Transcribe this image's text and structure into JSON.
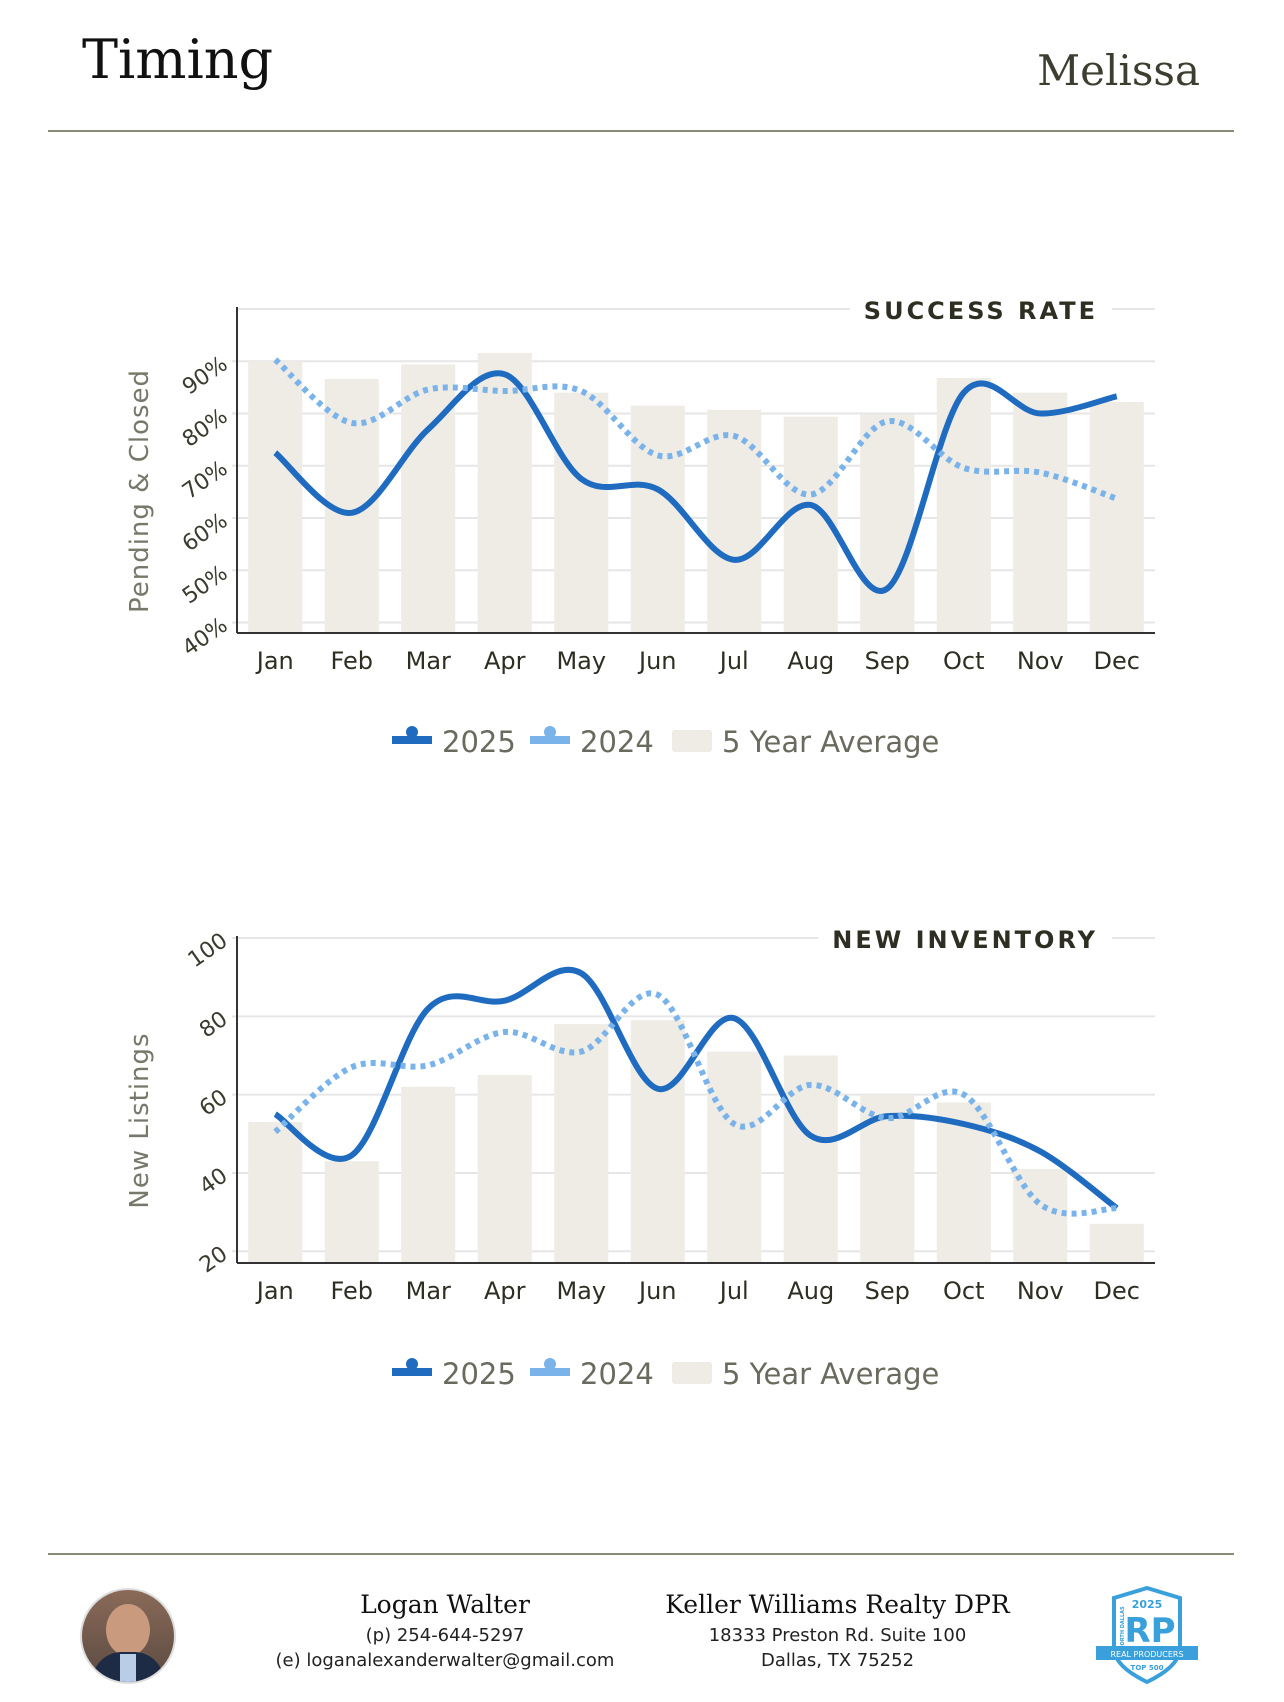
{
  "header": {
    "title": "Timing",
    "city": "Melissa"
  },
  "colors": {
    "series_2025": "#1f6bbf",
    "series_2024": "#7ab3ea",
    "bars": "#efece6",
    "text": "#3a3a2e"
  },
  "chart_data": [
    {
      "type": "line+bar",
      "title": "SUCCESS RATE",
      "ylabel": "Pending & Closed",
      "categories": [
        "Jan",
        "Feb",
        "Mar",
        "Apr",
        "May",
        "Jun",
        "Jul",
        "Aug",
        "Sep",
        "Oct",
        "Nov",
        "Dec"
      ],
      "yticks": [
        "40%",
        "50%",
        "60%",
        "70%",
        "80%",
        "90%"
      ],
      "ytick_values": [
        40,
        50,
        60,
        70,
        80,
        90
      ],
      "ylim": [
        38,
        100
      ],
      "grid": true,
      "legend_position": "bottom",
      "series": [
        {
          "name": "2025",
          "kind": "line",
          "style": "solid",
          "values": [
            72.5,
            61,
            77,
            87.5,
            67.5,
            65.5,
            52,
            62.5,
            46.5,
            84,
            80,
            83.3
          ]
        },
        {
          "name": "2024",
          "kind": "line",
          "style": "dotted",
          "values": [
            90.3,
            78.2,
            84.6,
            84.3,
            84.3,
            72,
            75.7,
            64.5,
            78.5,
            69.6,
            68.7,
            63.7
          ]
        },
        {
          "name": "5 Year Average",
          "kind": "bar",
          "values": [
            90,
            86.6,
            89.4,
            91.6,
            84,
            81.5,
            80.7,
            79.4,
            79.8,
            86.8,
            84,
            82.2
          ]
        }
      ]
    },
    {
      "type": "line+bar",
      "title": "NEW INVENTORY",
      "ylabel": "New Listings",
      "categories": [
        "Jan",
        "Feb",
        "Mar",
        "Apr",
        "May",
        "Jun",
        "Jul",
        "Aug",
        "Sep",
        "Oct",
        "Nov",
        "Dec"
      ],
      "yticks": [
        "20",
        "40",
        "60",
        "80",
        "100"
      ],
      "ytick_values": [
        20,
        40,
        60,
        80,
        100
      ],
      "ylim": [
        17,
        100
      ],
      "grid": true,
      "legend_position": "bottom",
      "series": [
        {
          "name": "2025",
          "kind": "line",
          "style": "solid",
          "values": [
            55,
            44.5,
            82,
            84,
            91,
            61.5,
            79.5,
            49.5,
            54.5,
            52.5,
            45.5,
            31
          ]
        },
        {
          "name": "2024",
          "kind": "line",
          "style": "dotted",
          "values": [
            50.5,
            67,
            67.5,
            76,
            71,
            85.5,
            52.5,
            62.5,
            54,
            60,
            32,
            31
          ]
        },
        {
          "name": "5 Year Average",
          "kind": "bar",
          "values": [
            53,
            43,
            62,
            65,
            78,
            79,
            71,
            70,
            60,
            58,
            41,
            27
          ]
        }
      ]
    }
  ],
  "footer": {
    "agent_name": "Logan Walter",
    "phone": "(p) 254-644-5297",
    "email": "(e) loganalexanderwalter@gmail.com",
    "company": "Keller Williams Realty DPR",
    "address1": "18333 Preston Rd. Suite 100",
    "address2": "Dallas, TX 75252",
    "badge": {
      "year": "2025",
      "letters": "RP",
      "banner": "REAL PRODUCERS",
      "sub": "TOP 500",
      "side": "NORTH DALLAS"
    }
  }
}
